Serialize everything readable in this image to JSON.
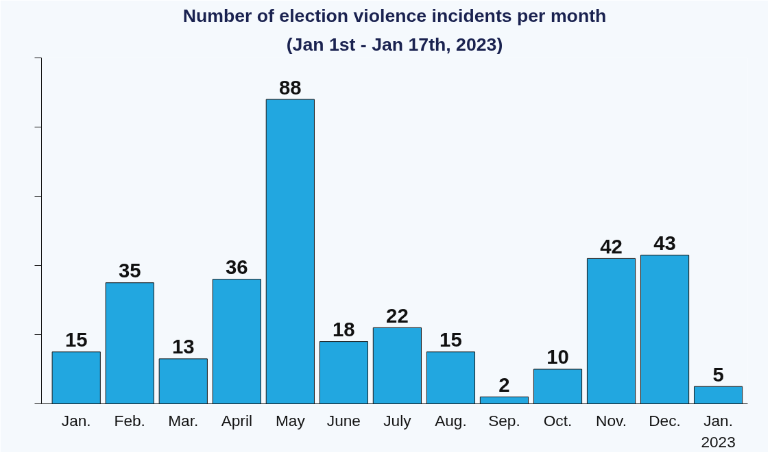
{
  "chart_data": {
    "type": "bar",
    "title": "Number of election violence incidents per month",
    "subtitle": "(Jan 1st - Jan 17th, 2023)",
    "categories": [
      "Jan.",
      "Feb.",
      "Mar.",
      "April",
      "May",
      "June",
      "July",
      "Aug.",
      "Sep.",
      "Oct.",
      "Nov.",
      "Dec.",
      "Jan.\n2023"
    ],
    "values": [
      15,
      35,
      13,
      36,
      88,
      18,
      22,
      15,
      2,
      10,
      42,
      43,
      5
    ],
    "color": "#22a7e0",
    "data_labels": true,
    "ylim": [
      0,
      100
    ],
    "yticks": [
      {
        "value": 0,
        "label": null
      },
      {
        "value": 20,
        "label": null
      },
      {
        "value": 40,
        "label": null
      },
      {
        "value": 60,
        "label": null
      },
      {
        "value": 80,
        "label": null
      },
      {
        "value": 100,
        "label": null
      }
    ],
    "tick_labels": "x",
    "grid": false
  }
}
